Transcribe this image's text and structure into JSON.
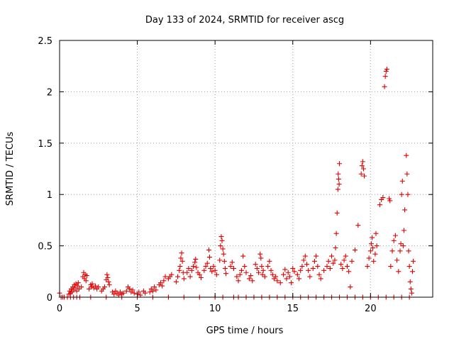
{
  "chart_data": {
    "type": "scatter",
    "title": "Day 133 of 2024, SRMTID for receiver ascg",
    "xlabel": "GPS time / hours",
    "ylabel": "SRMTID / TECUs",
    "xlim": [
      0,
      24
    ],
    "ylim": [
      0,
      2.5
    ],
    "x_ticks": [
      0,
      5,
      10,
      15,
      20
    ],
    "x_tick_labels": [
      "0",
      "5",
      "10",
      "15",
      "20"
    ],
    "y_ticks": [
      0,
      0.5,
      1,
      1.5,
      2,
      2.5
    ],
    "y_tick_labels": [
      "0",
      "0.5",
      "1",
      "1.5",
      "2",
      "2.5"
    ],
    "grid": true,
    "marker": "plus",
    "series": [
      {
        "name": "SRMTID",
        "color": "#e00000",
        "points": [
          [
            0.0,
            0.04
          ],
          [
            0.1,
            0.0
          ],
          [
            0.2,
            0.0
          ],
          [
            0.3,
            0.0
          ],
          [
            0.5,
            0.0
          ],
          [
            0.7,
            0.0
          ],
          [
            0.9,
            0.0
          ],
          [
            1.1,
            0.0
          ],
          [
            1.3,
            0.0
          ],
          [
            0.6,
            0.03
          ],
          [
            0.65,
            0.06
          ],
          [
            0.7,
            0.04
          ],
          [
            0.75,
            0.08
          ],
          [
            0.8,
            0.05
          ],
          [
            0.85,
            0.1
          ],
          [
            0.9,
            0.07
          ],
          [
            0.95,
            0.12
          ],
          [
            1.0,
            0.09
          ],
          [
            1.05,
            0.13
          ],
          [
            1.1,
            0.06
          ],
          [
            1.15,
            0.11
          ],
          [
            1.2,
            0.14
          ],
          [
            1.25,
            0.08
          ],
          [
            1.4,
            0.1
          ],
          [
            1.5,
            0.2
          ],
          [
            1.55,
            0.24
          ],
          [
            1.6,
            0.18
          ],
          [
            1.65,
            0.22
          ],
          [
            1.7,
            0.16
          ],
          [
            1.75,
            0.21
          ],
          [
            1.9,
            0.08
          ],
          [
            2.0,
            0.12
          ],
          [
            2.05,
            0.1
          ],
          [
            2.1,
            0.13
          ],
          [
            2.2,
            0.09
          ],
          [
            2.3,
            0.11
          ],
          [
            2.4,
            0.08
          ],
          [
            2.5,
            0.1
          ],
          [
            2.7,
            0.06
          ],
          [
            2.8,
            0.08
          ],
          [
            2.9,
            0.1
          ],
          [
            3.0,
            0.17
          ],
          [
            3.05,
            0.22
          ],
          [
            3.1,
            0.19
          ],
          [
            3.15,
            0.15
          ],
          [
            3.2,
            0.12
          ],
          [
            3.4,
            0.05
          ],
          [
            3.5,
            0.03
          ],
          [
            3.6,
            0.06
          ],
          [
            3.7,
            0.04
          ],
          [
            3.8,
            0.02
          ],
          [
            3.9,
            0.05
          ],
          [
            4.0,
            0.03
          ],
          [
            4.1,
            0.04
          ],
          [
            4.3,
            0.06
          ],
          [
            4.4,
            0.1
          ],
          [
            4.5,
            0.08
          ],
          [
            4.6,
            0.05
          ],
          [
            4.7,
            0.07
          ],
          [
            4.8,
            0.04
          ],
          [
            5.0,
            0.03
          ],
          [
            5.1,
            0.05
          ],
          [
            5.2,
            0.02
          ],
          [
            5.4,
            0.06
          ],
          [
            5.5,
            0.04
          ],
          [
            5.8,
            0.05
          ],
          [
            5.9,
            0.08
          ],
          [
            6.0,
            0.06
          ],
          [
            6.1,
            0.1
          ],
          [
            6.2,
            0.07
          ],
          [
            6.4,
            0.12
          ],
          [
            6.5,
            0.14
          ],
          [
            6.6,
            0.11
          ],
          [
            6.7,
            0.16
          ],
          [
            6.8,
            0.2
          ],
          [
            7.0,
            0.18
          ],
          [
            7.1,
            0.2
          ],
          [
            7.2,
            0.22
          ],
          [
            7.5,
            0.15
          ],
          [
            7.6,
            0.2
          ],
          [
            7.7,
            0.26
          ],
          [
            7.75,
            0.3
          ],
          [
            7.8,
            0.38
          ],
          [
            7.85,
            0.43
          ],
          [
            7.9,
            0.35
          ],
          [
            7.95,
            0.24
          ],
          [
            8.0,
            0.18
          ],
          [
            8.2,
            0.24
          ],
          [
            8.3,
            0.28
          ],
          [
            8.4,
            0.2
          ],
          [
            8.5,
            0.26
          ],
          [
            8.6,
            0.3
          ],
          [
            8.7,
            0.34
          ],
          [
            8.75,
            0.37
          ],
          [
            8.8,
            0.29
          ],
          [
            8.9,
            0.24
          ],
          [
            9.0,
            0.22
          ],
          [
            9.1,
            0.19
          ],
          [
            9.3,
            0.26
          ],
          [
            9.4,
            0.3
          ],
          [
            9.5,
            0.33
          ],
          [
            9.6,
            0.46
          ],
          [
            9.65,
            0.39
          ],
          [
            9.7,
            0.28
          ],
          [
            9.8,
            0.25
          ],
          [
            9.9,
            0.3
          ],
          [
            10.0,
            0.26
          ],
          [
            10.1,
            0.22
          ],
          [
            10.3,
            0.36
          ],
          [
            10.35,
            0.5
          ],
          [
            10.4,
            0.59
          ],
          [
            10.45,
            0.55
          ],
          [
            10.5,
            0.47
          ],
          [
            10.55,
            0.42
          ],
          [
            10.6,
            0.35
          ],
          [
            10.65,
            0.28
          ],
          [
            10.7,
            0.23
          ],
          [
            11.0,
            0.3
          ],
          [
            11.1,
            0.34
          ],
          [
            11.2,
            0.28
          ],
          [
            11.4,
            0.2
          ],
          [
            11.5,
            0.16
          ],
          [
            11.6,
            0.22
          ],
          [
            11.7,
            0.26
          ],
          [
            11.8,
            0.4
          ],
          [
            11.9,
            0.3
          ],
          [
            12.0,
            0.24
          ],
          [
            12.2,
            0.18
          ],
          [
            12.3,
            0.21
          ],
          [
            12.4,
            0.16
          ],
          [
            12.6,
            0.32
          ],
          [
            12.7,
            0.28
          ],
          [
            12.8,
            0.24
          ],
          [
            12.9,
            0.42
          ],
          [
            12.95,
            0.38
          ],
          [
            13.0,
            0.3
          ],
          [
            13.05,
            0.22
          ],
          [
            13.1,
            0.26
          ],
          [
            13.2,
            0.2
          ],
          [
            13.4,
            0.3
          ],
          [
            13.5,
            0.35
          ],
          [
            13.6,
            0.26
          ],
          [
            13.7,
            0.22
          ],
          [
            13.8,
            0.18
          ],
          [
            13.9,
            0.2
          ],
          [
            14.0,
            0.16
          ],
          [
            14.2,
            0.14
          ],
          [
            14.4,
            0.22
          ],
          [
            14.5,
            0.27
          ],
          [
            14.6,
            0.18
          ],
          [
            14.7,
            0.24
          ],
          [
            14.8,
            0.2
          ],
          [
            14.9,
            0.14
          ],
          [
            15.0,
            0.28
          ],
          [
            15.1,
            0.25
          ],
          [
            15.3,
            0.22
          ],
          [
            15.4,
            0.18
          ],
          [
            15.5,
            0.26
          ],
          [
            15.6,
            0.3
          ],
          [
            15.7,
            0.36
          ],
          [
            15.8,
            0.4
          ],
          [
            15.9,
            0.32
          ],
          [
            16.0,
            0.26
          ],
          [
            16.1,
            0.2
          ],
          [
            16.3,
            0.28
          ],
          [
            16.4,
            0.35
          ],
          [
            16.5,
            0.4
          ],
          [
            16.6,
            0.3
          ],
          [
            16.7,
            0.22
          ],
          [
            16.8,
            0.18
          ],
          [
            17.0,
            0.26
          ],
          [
            17.2,
            0.3
          ],
          [
            17.3,
            0.35
          ],
          [
            17.4,
            0.28
          ],
          [
            17.5,
            0.4
          ],
          [
            17.6,
            0.33
          ],
          [
            17.7,
            0.36
          ],
          [
            17.75,
            0.48
          ],
          [
            17.8,
            0.62
          ],
          [
            17.85,
            0.82
          ],
          [
            17.9,
            1.05
          ],
          [
            17.95,
            1.15
          ],
          [
            18.0,
            1.3
          ],
          [
            17.92,
            1.2
          ],
          [
            17.98,
            1.1
          ],
          [
            18.1,
            0.32
          ],
          [
            18.2,
            0.28
          ],
          [
            18.3,
            0.36
          ],
          [
            18.4,
            0.4
          ],
          [
            18.5,
            0.3
          ],
          [
            18.6,
            0.25
          ],
          [
            18.7,
            0.1
          ],
          [
            18.8,
            0.35
          ],
          [
            19.0,
            0.46
          ],
          [
            19.2,
            0.7
          ],
          [
            19.4,
            1.2
          ],
          [
            19.45,
            1.28
          ],
          [
            19.5,
            1.32
          ],
          [
            19.55,
            1.25
          ],
          [
            19.6,
            1.18
          ],
          [
            19.8,
            0.3
          ],
          [
            19.9,
            0.38
          ],
          [
            20.0,
            0.45
          ],
          [
            20.05,
            0.52
          ],
          [
            20.1,
            0.58
          ],
          [
            20.15,
            0.48
          ],
          [
            20.2,
            0.35
          ],
          [
            20.3,
            0.42
          ],
          [
            20.35,
            0.62
          ],
          [
            20.4,
            0.5
          ],
          [
            20.6,
            0.9
          ],
          [
            20.7,
            0.95
          ],
          [
            20.8,
            0.97
          ],
          [
            20.9,
            2.05
          ],
          [
            20.95,
            2.15
          ],
          [
            21.0,
            2.2
          ],
          [
            21.05,
            2.22
          ],
          [
            21.2,
            0.96
          ],
          [
            21.25,
            0.94
          ],
          [
            21.3,
            0.3
          ],
          [
            21.4,
            0.45
          ],
          [
            21.5,
            0.55
          ],
          [
            21.6,
            0.6
          ],
          [
            21.7,
            0.36
          ],
          [
            21.8,
            0.25
          ],
          [
            21.9,
            0.45
          ],
          [
            21.95,
            0.52
          ],
          [
            22.0,
            1.0
          ],
          [
            22.05,
            1.13
          ],
          [
            22.1,
            0.5
          ],
          [
            22.15,
            0.65
          ],
          [
            22.2,
            0.85
          ],
          [
            22.3,
            1.38
          ],
          [
            22.35,
            1.2
          ],
          [
            22.4,
            1.0
          ],
          [
            22.45,
            0.45
          ],
          [
            22.5,
            0.3
          ],
          [
            22.55,
            0.15
          ],
          [
            22.6,
            0.08
          ],
          [
            22.65,
            0.04
          ],
          [
            22.7,
            0.25
          ],
          [
            22.75,
            0.35
          ],
          [
            11.2,
            0.0
          ],
          [
            11.5,
            0.0
          ],
          [
            12.0,
            0.0
          ],
          [
            12.5,
            0.0
          ],
          [
            13.0,
            0.0
          ],
          [
            13.5,
            0.0
          ],
          [
            14.0,
            0.0
          ],
          [
            14.5,
            0.0
          ],
          [
            15.0,
            0.0
          ],
          [
            15.5,
            0.0
          ],
          [
            16.0,
            0.0
          ],
          [
            16.5,
            0.0
          ],
          [
            17.0,
            0.0
          ],
          [
            17.5,
            0.0
          ],
          [
            18.0,
            0.0
          ],
          [
            18.5,
            0.0
          ],
          [
            19.0,
            0.0
          ],
          [
            19.5,
            0.0
          ],
          [
            20.0,
            0.0
          ],
          [
            20.5,
            0.0
          ],
          [
            21.0,
            0.0
          ],
          [
            21.5,
            0.0
          ],
          [
            22.0,
            0.0
          ],
          [
            22.5,
            0.0
          ],
          [
            2.0,
            0.0
          ],
          [
            3.0,
            0.0
          ],
          [
            4.0,
            0.0
          ],
          [
            5.0,
            0.0
          ],
          [
            6.0,
            0.0
          ],
          [
            7.0,
            0.0
          ],
          [
            8.0,
            0.0
          ],
          [
            9.0,
            0.0
          ],
          [
            10.0,
            0.0
          ],
          [
            10.5,
            0.0
          ]
        ]
      }
    ]
  }
}
